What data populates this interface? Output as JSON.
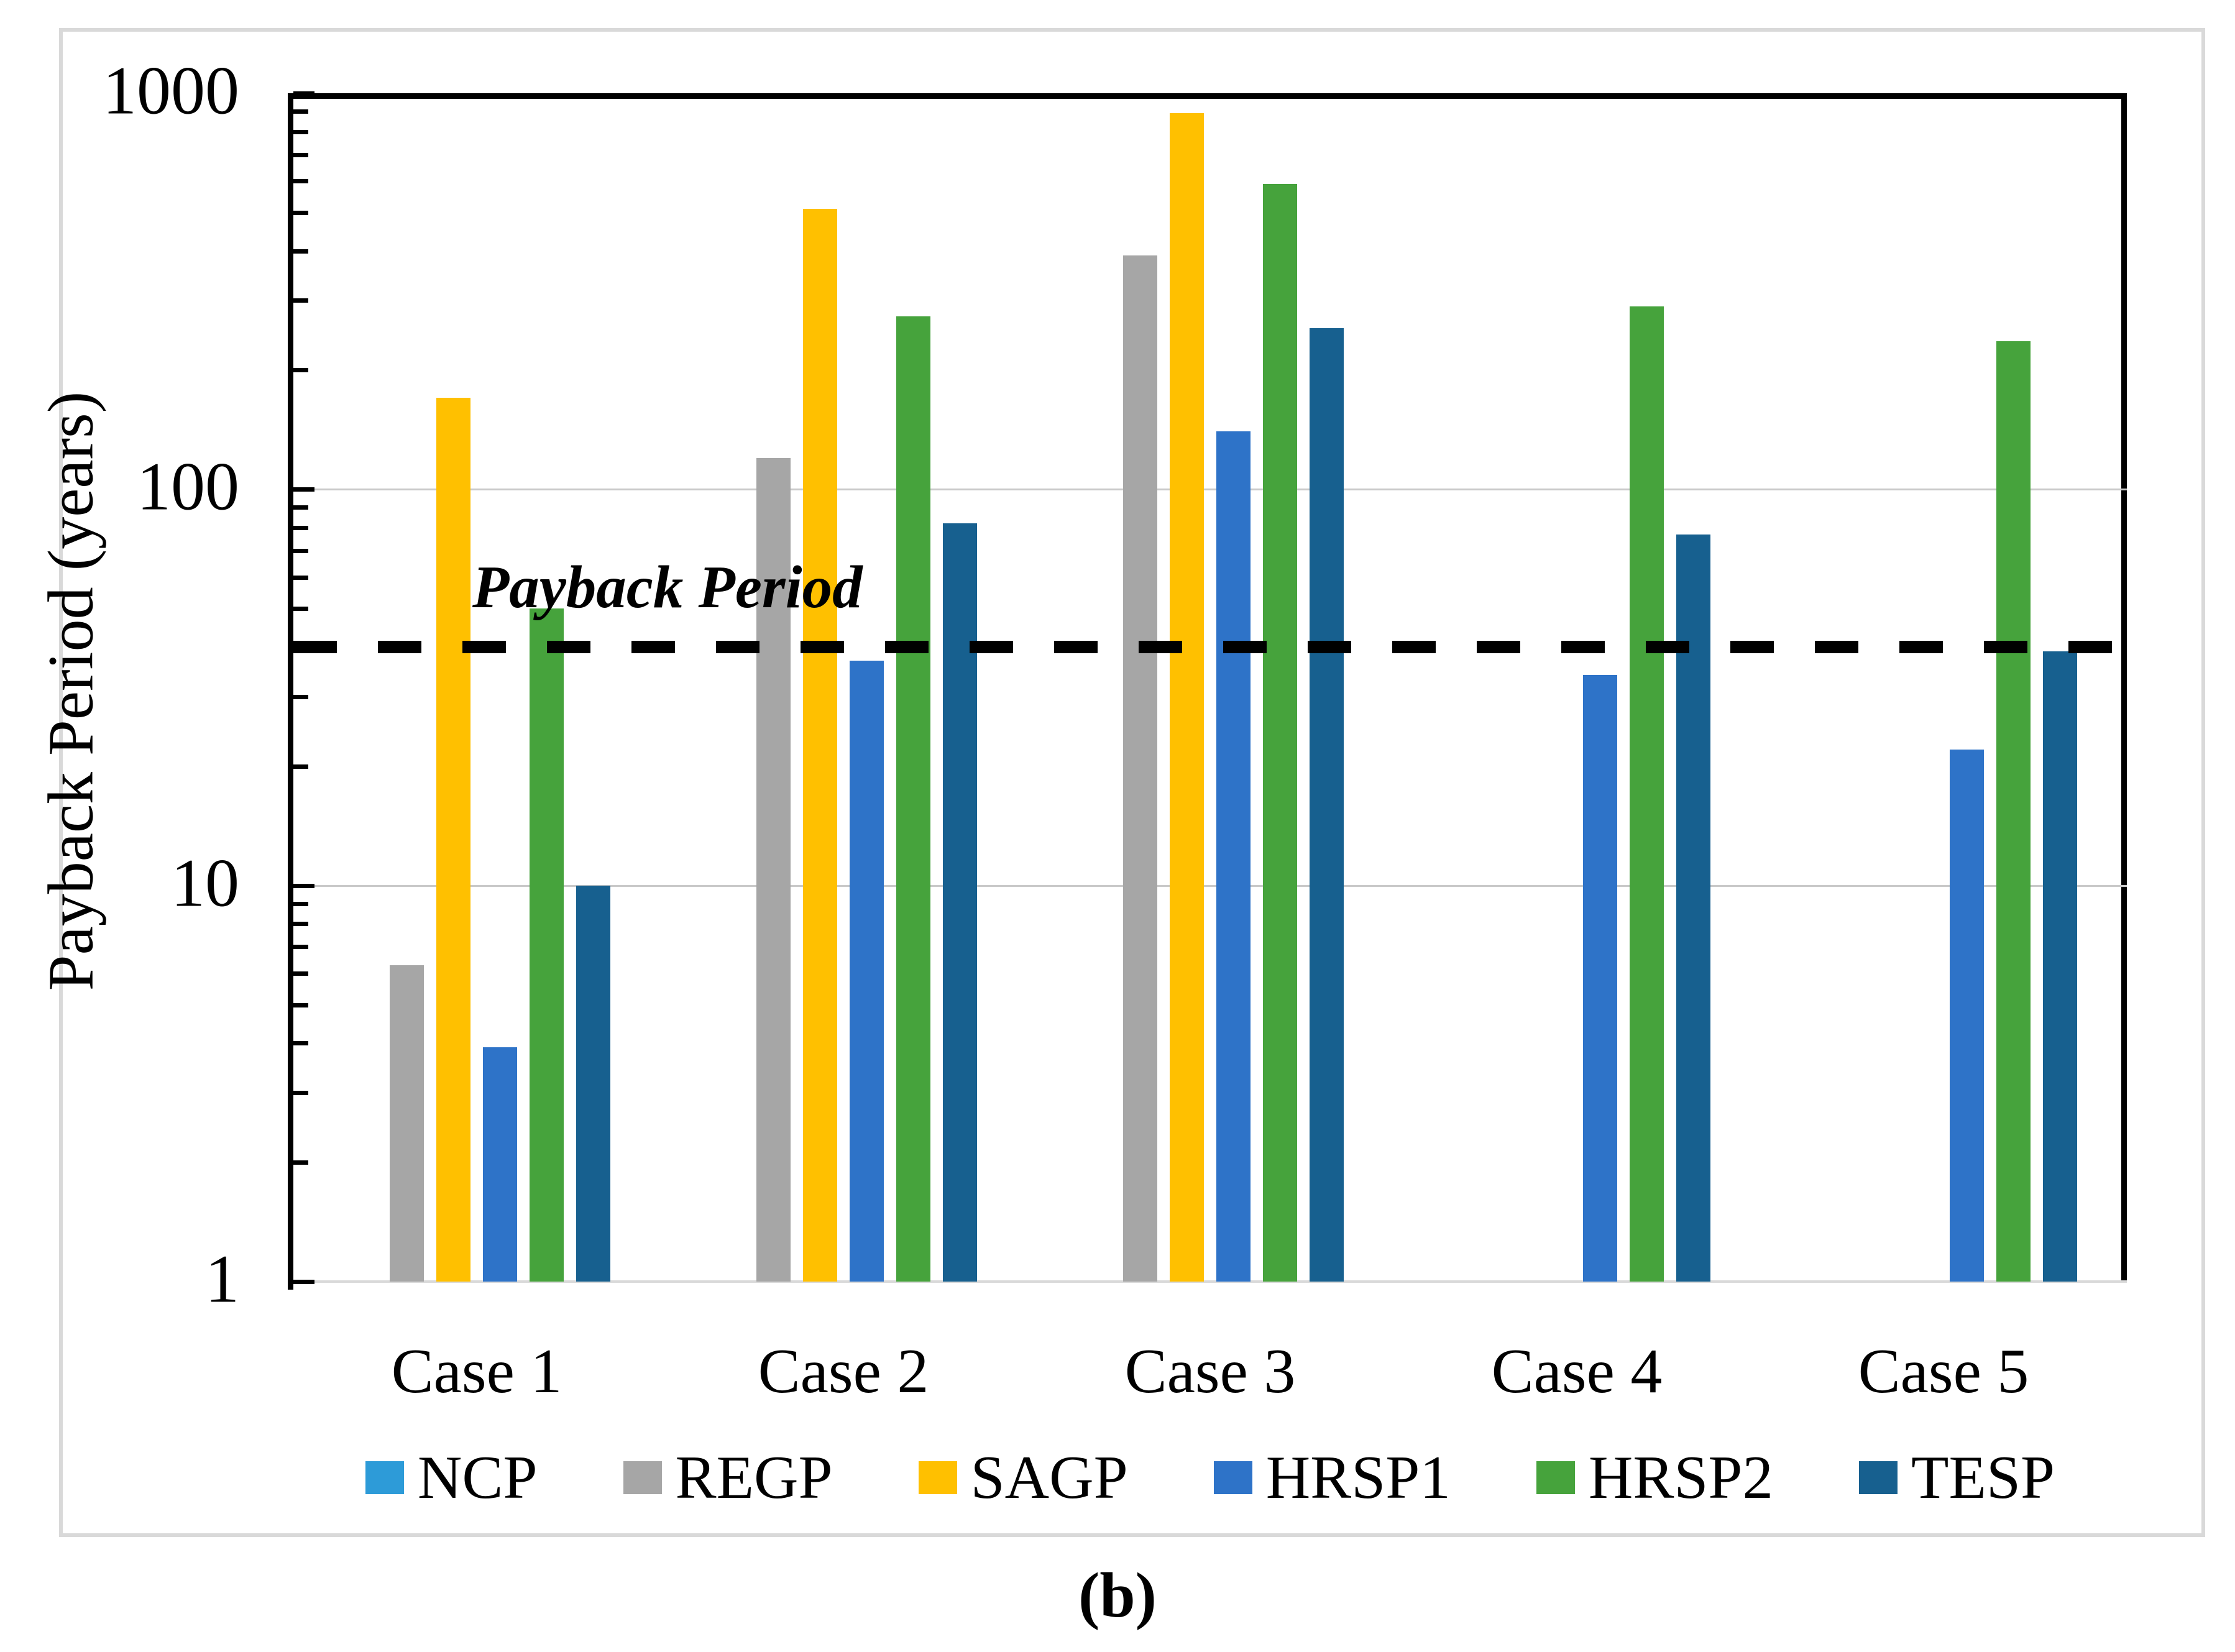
{
  "caption": "(b)",
  "chart_data": {
    "type": "bar",
    "y_scale": "log10",
    "ylim": [
      1,
      1000
    ],
    "ylabel": "Payback Period (years)",
    "yticks": [
      1000,
      100,
      10,
      1
    ],
    "gridlines_at": [
      100,
      10
    ],
    "grid": "horizontal-light",
    "legend_position": "bottom-center",
    "categories": [
      "Case 1",
      "Case 2",
      "Case 3",
      "Case 4",
      "Case 5"
    ],
    "series": [
      {
        "name": "NCP",
        "color": "#2d9bd8",
        "values": [
          null,
          null,
          null,
          null,
          null
        ]
      },
      {
        "name": "REGP",
        "color": "#a6a6a6",
        "values": [
          6.3,
          120,
          390,
          null,
          null
        ]
      },
      {
        "name": "SAGP",
        "color": "#ffc000",
        "values": [
          170,
          510,
          890,
          null,
          null
        ]
      },
      {
        "name": "HRSP1",
        "color": "#2e73c8",
        "values": [
          3.9,
          37,
          140,
          34,
          22
        ]
      },
      {
        "name": "HRSP2",
        "color": "#46a33c",
        "values": [
          50,
          273,
          590,
          290,
          237
        ]
      },
      {
        "name": "TESP",
        "color": "#17608f",
        "values": [
          10,
          82,
          255,
          77,
          39
        ]
      }
    ],
    "threshold_line": {
      "label": "Payback Period",
      "value": 40,
      "style": "dashed-black"
    }
  },
  "colors": {
    "axis": "#000000",
    "gridline": "#c9c9c9",
    "baseline": "#d9d9d9",
    "panel_border": "#d9d9d9",
    "background": "#ffffff",
    "dashed_line": "#000000"
  }
}
